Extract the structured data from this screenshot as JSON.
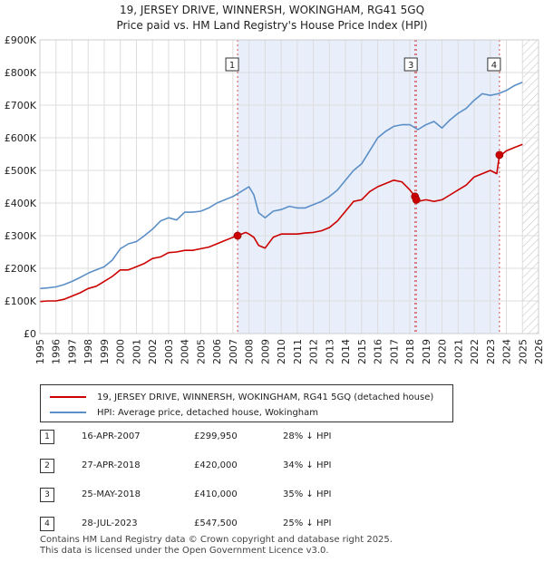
{
  "title_line1": "19, JERSEY DRIVE, WINNERSH, WOKINGHAM, RG41 5GQ",
  "title_line2": "Price paid vs. HM Land Registry's House Price Index (HPI)",
  "legend": {
    "property_label": "19, JERSEY DRIVE, WINNERSH, WOKINGHAM, RG41 5GQ (detached house)",
    "hpi_label": "HPI: Average price, detached house, Wokingham"
  },
  "transactions": [
    {
      "num": "1",
      "date": "16-APR-2007",
      "price": "£299,950",
      "hpi": "28% ↓ HPI"
    },
    {
      "num": "2",
      "date": "27-APR-2018",
      "price": "£420,000",
      "hpi": "34% ↓ HPI"
    },
    {
      "num": "3",
      "date": "25-MAY-2018",
      "price": "£410,000",
      "hpi": "35% ↓ HPI"
    },
    {
      "num": "4",
      "date": "28-JUL-2023",
      "price": "£547,500",
      "hpi": "25% ↓ HPI"
    }
  ],
  "footer_line1": "Contains HM Land Registry data © Crown copyright and database right 2025.",
  "footer_line2": "This data is licensed under the Open Government Licence v3.0.",
  "colors": {
    "property": "#cc0000",
    "hpi": "#5b8fc7",
    "shade": "#e8eefa"
  },
  "chart_data": {
    "type": "line",
    "title": "Price paid vs. HM Land Registry's House Price Index (HPI)",
    "xlabel": "",
    "ylabel": "",
    "xlim": [
      1995,
      2026
    ],
    "ylim": [
      0,
      900000
    ],
    "y_ticks": [
      0,
      100000,
      200000,
      300000,
      400000,
      500000,
      600000,
      700000,
      800000,
      900000
    ],
    "y_tick_labels": [
      "£0",
      "£100K",
      "£200K",
      "£300K",
      "£400K",
      "£500K",
      "£600K",
      "£700K",
      "£800K",
      "£900K"
    ],
    "x_ticks": [
      1995,
      1996,
      1997,
      1998,
      1999,
      2000,
      2001,
      2002,
      2003,
      2004,
      2005,
      2006,
      2007,
      2008,
      2009,
      2010,
      2011,
      2012,
      2013,
      2014,
      2015,
      2016,
      2017,
      2018,
      2019,
      2020,
      2021,
      2022,
      2023,
      2024,
      2025,
      2026
    ],
    "shaded_region": [
      2007.29,
      2023.57
    ],
    "future_hatch_start": 2025.0,
    "series": [
      {
        "name": "HPI: Average price, detached house, Wokingham",
        "x": [
          1995,
          1995.5,
          1996,
          1996.5,
          1997,
          1997.5,
          1998,
          1998.5,
          1999,
          1999.5,
          2000,
          2000.5,
          2001,
          2001.5,
          2002,
          2002.5,
          2003,
          2003.5,
          2004,
          2004.5,
          2005,
          2005.5,
          2006,
          2006.5,
          2007,
          2007.5,
          2008,
          2008.3,
          2008.6,
          2009,
          2009.5,
          2010,
          2010.5,
          2011,
          2011.5,
          2012,
          2012.5,
          2013,
          2013.5,
          2014,
          2014.5,
          2015,
          2015.5,
          2016,
          2016.5,
          2017,
          2017.5,
          2018,
          2018.5,
          2019,
          2019.5,
          2020,
          2020.5,
          2021,
          2021.5,
          2022,
          2022.5,
          2023,
          2023.5,
          2024,
          2024.5,
          2025
        ],
        "y": [
          138000,
          140000,
          143000,
          150000,
          160000,
          172000,
          185000,
          195000,
          205000,
          225000,
          260000,
          275000,
          282000,
          300000,
          320000,
          345000,
          355000,
          348000,
          372000,
          372000,
          375000,
          385000,
          400000,
          410000,
          420000,
          435000,
          450000,
          425000,
          370000,
          355000,
          375000,
          380000,
          390000,
          385000,
          385000,
          395000,
          405000,
          420000,
          440000,
          470000,
          500000,
          520000,
          560000,
          600000,
          620000,
          635000,
          640000,
          640000,
          625000,
          640000,
          650000,
          630000,
          655000,
          675000,
          690000,
          715000,
          735000,
          730000,
          735000,
          745000,
          760000,
          770000
        ]
      },
      {
        "name": "19, JERSEY DRIVE, WINNERSH, WOKINGHAM, RG41 5GQ (detached house)",
        "x": [
          1995,
          1995.5,
          1996,
          1996.5,
          1997,
          1997.5,
          1998,
          1998.5,
          1999,
          1999.5,
          2000,
          2000.5,
          2001,
          2001.5,
          2002,
          2002.5,
          2003,
          2003.5,
          2004,
          2004.5,
          2005,
          2005.5,
          2006,
          2006.5,
          2007,
          2007.29,
          2007.8,
          2008,
          2008.3,
          2008.6,
          2009,
          2009.5,
          2010,
          2010.5,
          2011,
          2011.5,
          2012,
          2012.5,
          2013,
          2013.5,
          2014,
          2014.5,
          2015,
          2015.5,
          2016,
          2016.5,
          2017,
          2017.5,
          2018,
          2018.32,
          2018.4,
          2018.5,
          2019,
          2019.5,
          2020,
          2020.5,
          2021,
          2021.5,
          2022,
          2022.5,
          2023,
          2023.4,
          2023.57,
          2023.8,
          2024,
          2024.5,
          2025
        ],
        "y": [
          98000,
          100000,
          100000,
          105000,
          115000,
          125000,
          138000,
          145000,
          160000,
          175000,
          195000,
          195000,
          205000,
          215000,
          230000,
          235000,
          248000,
          250000,
          255000,
          255000,
          260000,
          265000,
          275000,
          285000,
          295000,
          299950,
          310000,
          305000,
          295000,
          270000,
          262000,
          295000,
          305000,
          305000,
          305000,
          308000,
          310000,
          315000,
          325000,
          345000,
          375000,
          405000,
          410000,
          435000,
          450000,
          460000,
          470000,
          465000,
          440000,
          420000,
          410000,
          405000,
          410000,
          405000,
          410000,
          425000,
          440000,
          455000,
          480000,
          490000,
          500000,
          490000,
          547500,
          552000,
          560000,
          570000,
          580000
        ]
      }
    ],
    "markers": [
      {
        "label": "1",
        "x": 2007.29,
        "y": 299950
      },
      {
        "label": "2",
        "x": 2018.32,
        "y": 420000
      },
      {
        "label": "3",
        "x": 2018.4,
        "y": 410000
      },
      {
        "label": "4",
        "x": 2023.57,
        "y": 547500
      }
    ],
    "marker_boxes": [
      {
        "label": "1",
        "x": 2007.29
      },
      {
        "label": "3",
        "x": 2018.4
      },
      {
        "label": "4",
        "x": 2023.57
      }
    ],
    "legend_position": "below"
  }
}
